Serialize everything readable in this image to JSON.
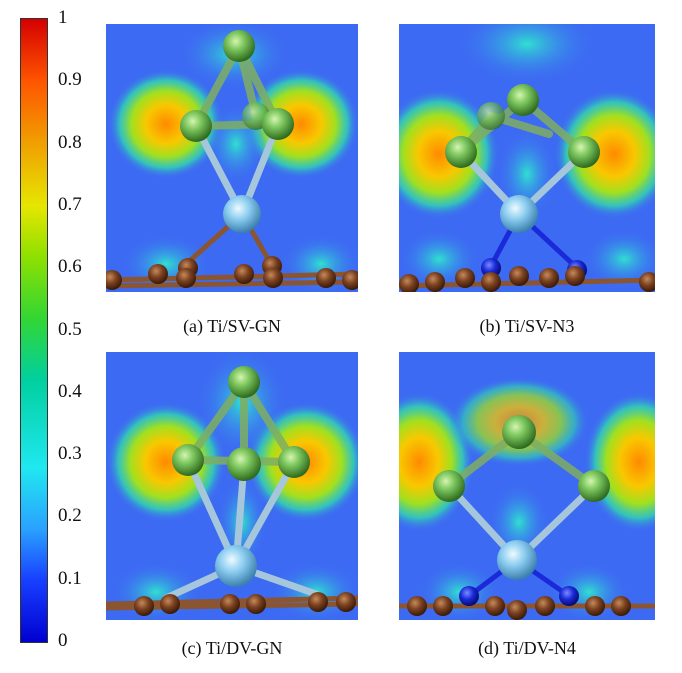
{
  "colorbar": {
    "ticks": [
      "1",
      "0.9",
      "0.8",
      "0.7",
      "0.6",
      "0.5",
      "0.4",
      "0.3",
      "0.2",
      "0.1",
      "0"
    ]
  },
  "panels": [
    {
      "caption": "(a) Ti/SV-GN"
    },
    {
      "caption": "(b) Ti/SV-N3"
    },
    {
      "caption": "(c) Ti/DV-GN"
    },
    {
      "caption": "(d) Ti/DV-N4"
    }
  ]
}
